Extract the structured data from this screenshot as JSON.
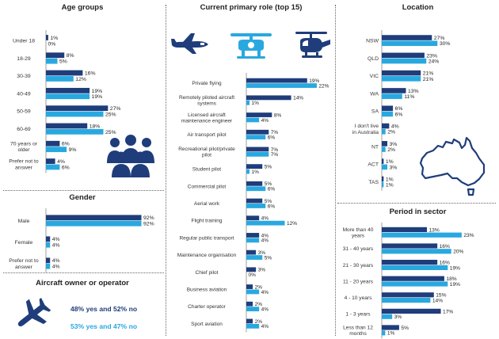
{
  "colors": {
    "dark": "#1f3d7a",
    "light": "#29a8e0",
    "icon": "#1f3d7a",
    "icon_light": "#29a8e0",
    "axis": "#888888"
  },
  "age": {
    "title": "Age groups",
    "chart_data": {
      "type": "bar",
      "orientation": "horizontal",
      "xlim": [
        0,
        30
      ],
      "categories": [
        "Under 18",
        "18-29",
        "30-39",
        "40-49",
        "50-59",
        "60-69",
        "70 years or older",
        "Prefer not to answer"
      ],
      "series": [
        {
          "values": [
            1,
            8,
            16,
            19,
            27,
            18,
            6,
            4
          ],
          "labels": [
            "1%",
            "8%",
            "16%",
            "19%",
            "27%",
            "18%",
            "6%",
            "4%"
          ]
        },
        {
          "values": [
            0,
            5,
            12,
            19,
            25,
            25,
            9,
            6
          ],
          "labels": [
            "0%",
            "5%",
            "12%",
            "19%",
            "25%",
            "25%",
            "9%",
            "6%"
          ]
        }
      ]
    }
  },
  "gender": {
    "title": "Gender",
    "chart_data": {
      "type": "bar",
      "orientation": "horizontal",
      "xlim": [
        0,
        100
      ],
      "categories": [
        "Male",
        "Female",
        "Prefer not to answer"
      ],
      "series": [
        {
          "values": [
            92,
            4,
            4
          ],
          "labels": [
            "92%",
            "4%",
            "4%"
          ]
        },
        {
          "values": [
            92,
            4,
            4
          ],
          "labels": [
            "92%",
            "4%",
            "4%"
          ]
        }
      ]
    }
  },
  "owner": {
    "title": "Aircraft owner or operator",
    "line1": "48% yes and 52% no",
    "line2": "53% yes and 47% no",
    "icon": "airplane-icon"
  },
  "role": {
    "title": "Current primary role (top 15)",
    "icons": [
      "small-plane-icon",
      "drone-icon",
      "helicopter-icon"
    ],
    "chart_data": {
      "type": "bar",
      "orientation": "horizontal",
      "xlim": [
        0,
        24
      ],
      "categories": [
        "Private flying",
        "Remotely piloted aircraft systems",
        "Licensed aircraft maintenance engineer",
        "Air transport pilot",
        "Recreational pilot/private pilot",
        "Student pilot",
        "Commercial pilot",
        "Aerial work",
        "Flight training",
        "Regular public transport",
        "Maintenance organisation",
        "Chief pilot",
        "Business aviation",
        "Charter operator",
        "Sport aviation"
      ],
      "series": [
        {
          "values": [
            19,
            14,
            8,
            7,
            7,
            5,
            5,
            5,
            4,
            4,
            3,
            3,
            2,
            2,
            2
          ],
          "labels": [
            "19%",
            "14%",
            "8%",
            "7%",
            "7%",
            "5%",
            "5%",
            "5%",
            "4%",
            "4%",
            "3%",
            "3%",
            "2%",
            "2%",
            "2%"
          ]
        },
        {
          "values": [
            22,
            1,
            4,
            6,
            7,
            1,
            6,
            6,
            12,
            4,
            5,
            0,
            4,
            4,
            4
          ],
          "labels": [
            "22%",
            "1%",
            "4%",
            "6%",
            "7%",
            "1%",
            "6%",
            "6%",
            "12%",
            "4%",
            "5%",
            "0%",
            "4%",
            "4%",
            "4%"
          ]
        }
      ]
    }
  },
  "location": {
    "title": "Location",
    "icon": "australia-map-icon",
    "chart_data": {
      "type": "bar",
      "orientation": "horizontal",
      "xlim": [
        0,
        32
      ],
      "categories": [
        "NSW",
        "QLD",
        "VIC",
        "WA",
        "SA",
        "I don't live in Australia",
        "NT",
        "ACT",
        "TAS"
      ],
      "series": [
        {
          "values": [
            27,
            23,
            21,
            13,
            6,
            4,
            3,
            1,
            1
          ],
          "labels": [
            "27%",
            "23%",
            "21%",
            "13%",
            "6%",
            "4%",
            "3%",
            "1%",
            "1%"
          ]
        },
        {
          "values": [
            30,
            24,
            21,
            11,
            6,
            2,
            2,
            3,
            1
          ],
          "labels": [
            "30%",
            "24%",
            "21%",
            "11%",
            "6%",
            "2%",
            "2%",
            "3%",
            "1%"
          ]
        }
      ]
    }
  },
  "period": {
    "title": "Period in sector",
    "chart_data": {
      "type": "bar",
      "orientation": "horizontal",
      "xlim": [
        0,
        26
      ],
      "categories": [
        "More than 40 years",
        "31 - 40 years",
        "21 - 30 years",
        "11 - 20 years",
        "4 - 10 years",
        "1 - 3 years",
        "Less than 12 months"
      ],
      "series": [
        {
          "values": [
            13,
            16,
            16,
            18,
            15,
            17,
            5
          ],
          "labels": [
            "13%",
            "16%",
            "16%",
            "18%",
            "15%",
            "17%",
            "5%"
          ]
        },
        {
          "values": [
            23,
            20,
            19,
            19,
            14,
            3,
            1
          ],
          "labels": [
            "23%",
            "20%",
            "19%",
            "19%",
            "14%",
            "3%",
            "1%"
          ]
        }
      ]
    }
  }
}
